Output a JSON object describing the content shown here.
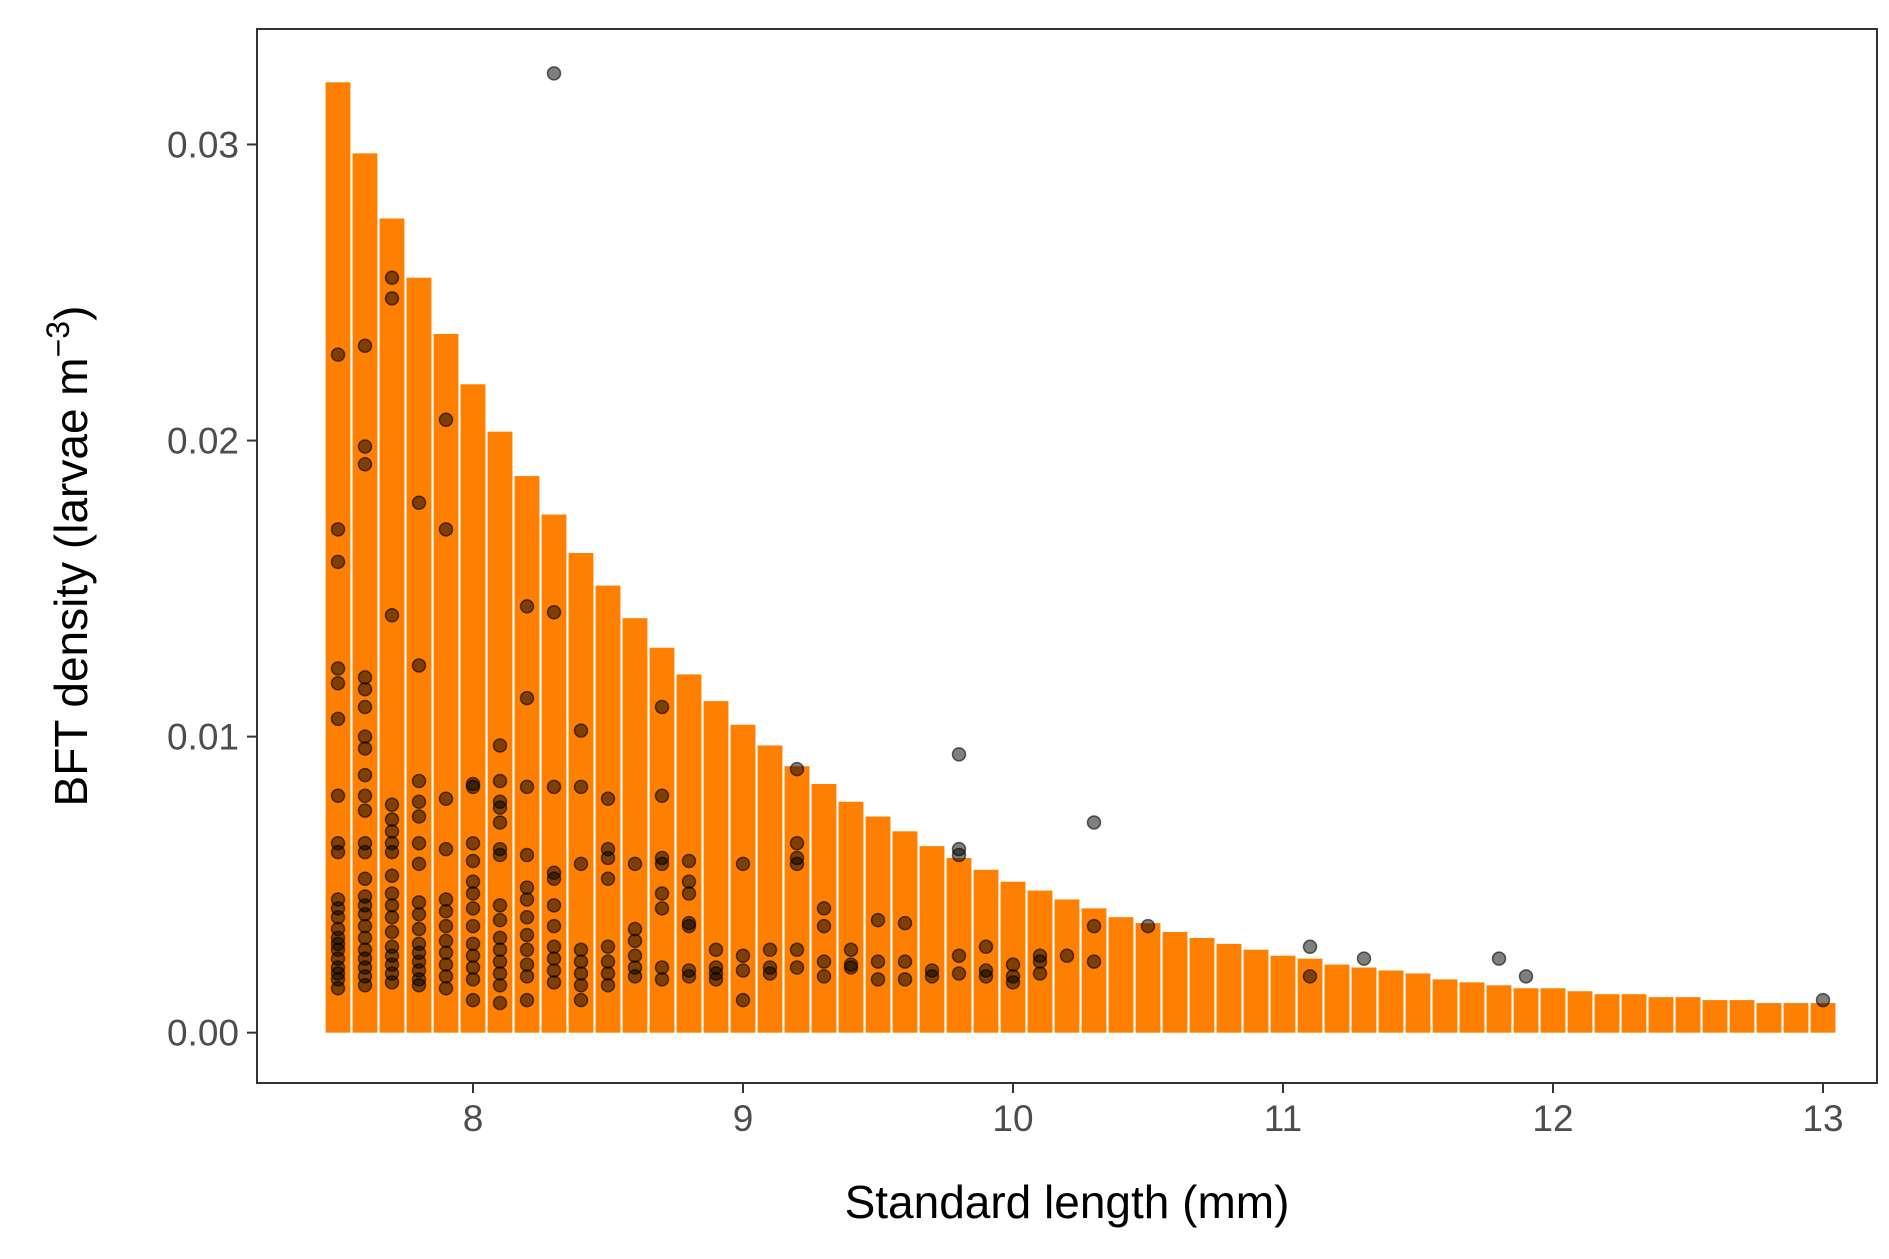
{
  "chart_data": {
    "type": "bar",
    "xlabel": "Standard length (mm)",
    "ylabel_main": "BFT density (larvae m",
    "ylabel_sup": "−3",
    "ylabel_close": ")",
    "xlim": [
      7.2,
      13.2
    ],
    "ylim": [
      -0.0017,
      0.0339
    ],
    "x_ticks": [
      8,
      9,
      10,
      11,
      12,
      13
    ],
    "x_tick_labels": [
      "8",
      "9",
      "10",
      "11",
      "12",
      "13"
    ],
    "y_ticks": [
      0,
      0.01,
      0.02,
      0.03
    ],
    "y_tick_labels": [
      "0.00",
      "0.01",
      "0.02",
      "0.03"
    ],
    "grid": false,
    "legend": "none",
    "colors": {
      "bar": "#ff7f00",
      "point_fill": "#000000",
      "point_opacity": 0.5,
      "axis": "#333333"
    },
    "series": [
      {
        "kind": "bar",
        "bar_width": 0.092,
        "x": [
          7.5,
          7.6,
          7.7,
          7.8,
          7.9,
          8.0,
          8.1,
          8.2,
          8.3,
          8.4,
          8.5,
          8.6,
          8.7,
          8.8,
          8.9,
          9.0,
          9.1,
          9.2,
          9.3,
          9.4,
          9.5,
          9.6,
          9.7,
          9.8,
          9.9,
          10.0,
          10.1,
          10.2,
          10.3,
          10.4,
          10.5,
          10.6,
          10.7,
          10.8,
          10.9,
          11.0,
          11.1,
          11.2,
          11.3,
          11.4,
          11.5,
          11.6,
          11.7,
          11.8,
          11.9,
          12.0,
          12.1,
          12.2,
          12.3,
          12.4,
          12.5,
          12.6,
          12.7,
          12.8,
          12.9,
          13.0
        ],
        "values": [
          0.0321,
          0.0297,
          0.0275,
          0.0255,
          0.0236,
          0.0219,
          0.0203,
          0.0188,
          0.0175,
          0.0162,
          0.0151,
          0.014,
          0.013,
          0.0121,
          0.0112,
          0.0104,
          0.0097,
          0.009,
          0.0084,
          0.0078,
          0.0073,
          0.0068,
          0.0063,
          0.0059,
          0.0055,
          0.0051,
          0.0048,
          0.0045,
          0.0042,
          0.0039,
          0.0037,
          0.0034,
          0.0032,
          0.003,
          0.0028,
          0.0026,
          0.0025,
          0.0023,
          0.0022,
          0.0021,
          0.002,
          0.0018,
          0.0017,
          0.0016,
          0.0015,
          0.0015,
          0.0014,
          0.0013,
          0.0013,
          0.0012,
          0.0012,
          0.0011,
          0.0011,
          0.001,
          0.001,
          0.001
        ]
      },
      {
        "kind": "scatter",
        "points": [
          [
            7.5,
            0.0229
          ],
          [
            7.5,
            0.017
          ],
          [
            7.5,
            0.0159
          ],
          [
            7.5,
            0.0123
          ],
          [
            7.5,
            0.0118
          ],
          [
            7.5,
            0.0106
          ],
          [
            7.5,
            0.008
          ],
          [
            7.5,
            0.0064
          ],
          [
            7.5,
            0.0061
          ],
          [
            7.5,
            0.0045
          ],
          [
            7.5,
            0.0042
          ],
          [
            7.5,
            0.0039
          ],
          [
            7.5,
            0.0035
          ],
          [
            7.5,
            0.0032
          ],
          [
            7.5,
            0.003
          ],
          [
            7.5,
            0.0028
          ],
          [
            7.5,
            0.0025
          ],
          [
            7.5,
            0.0022
          ],
          [
            7.5,
            0.002
          ],
          [
            7.5,
            0.0018
          ],
          [
            7.5,
            0.0015
          ],
          [
            7.6,
            0.0232
          ],
          [
            7.6,
            0.0198
          ],
          [
            7.6,
            0.0192
          ],
          [
            7.6,
            0.012
          ],
          [
            7.6,
            0.0116
          ],
          [
            7.6,
            0.011
          ],
          [
            7.6,
            0.01
          ],
          [
            7.6,
            0.0096
          ],
          [
            7.6,
            0.0087
          ],
          [
            7.6,
            0.008
          ],
          [
            7.6,
            0.0075
          ],
          [
            7.6,
            0.0064
          ],
          [
            7.6,
            0.0061
          ],
          [
            7.6,
            0.0052
          ],
          [
            7.6,
            0.0046
          ],
          [
            7.6,
            0.0043
          ],
          [
            7.6,
            0.004
          ],
          [
            7.6,
            0.0036
          ],
          [
            7.6,
            0.0032
          ],
          [
            7.6,
            0.0028
          ],
          [
            7.6,
            0.0025
          ],
          [
            7.6,
            0.0022
          ],
          [
            7.6,
            0.0019
          ],
          [
            7.6,
            0.0016
          ],
          [
            7.7,
            0.0255
          ],
          [
            7.7,
            0.0248
          ],
          [
            7.7,
            0.0141
          ],
          [
            7.7,
            0.0077
          ],
          [
            7.7,
            0.0072
          ],
          [
            7.7,
            0.0068
          ],
          [
            7.7,
            0.0064
          ],
          [
            7.7,
            0.0061
          ],
          [
            7.7,
            0.0053
          ],
          [
            7.7,
            0.0047
          ],
          [
            7.7,
            0.0043
          ],
          [
            7.7,
            0.0039
          ],
          [
            7.7,
            0.0034
          ],
          [
            7.7,
            0.0029
          ],
          [
            7.7,
            0.0026
          ],
          [
            7.7,
            0.0023
          ],
          [
            7.7,
            0.002
          ],
          [
            7.7,
            0.0017
          ],
          [
            7.8,
            0.0179
          ],
          [
            7.8,
            0.0124
          ],
          [
            7.8,
            0.0085
          ],
          [
            7.8,
            0.0078
          ],
          [
            7.8,
            0.0073
          ],
          [
            7.8,
            0.0064
          ],
          [
            7.8,
            0.0057
          ],
          [
            7.8,
            0.0044
          ],
          [
            7.8,
            0.004
          ],
          [
            7.8,
            0.0035
          ],
          [
            7.8,
            0.003
          ],
          [
            7.8,
            0.0027
          ],
          [
            7.8,
            0.0024
          ],
          [
            7.8,
            0.0021
          ],
          [
            7.8,
            0.0018
          ],
          [
            7.8,
            0.0016
          ],
          [
            7.9,
            0.0207
          ],
          [
            7.9,
            0.017
          ],
          [
            7.9,
            0.0079
          ],
          [
            7.9,
            0.0062
          ],
          [
            7.9,
            0.0045
          ],
          [
            7.9,
            0.0041
          ],
          [
            7.9,
            0.0036
          ],
          [
            7.9,
            0.0031
          ],
          [
            7.9,
            0.0027
          ],
          [
            7.9,
            0.0023
          ],
          [
            7.9,
            0.0019
          ],
          [
            7.9,
            0.0015
          ],
          [
            8.0,
            0.0084
          ],
          [
            8.0,
            0.0083
          ],
          [
            8.0,
            0.0064
          ],
          [
            8.0,
            0.0058
          ],
          [
            8.0,
            0.0051
          ],
          [
            8.0,
            0.0047
          ],
          [
            8.0,
            0.0042
          ],
          [
            8.0,
            0.0036
          ],
          [
            8.0,
            0.003
          ],
          [
            8.0,
            0.0026
          ],
          [
            8.0,
            0.0022
          ],
          [
            8.0,
            0.0018
          ],
          [
            8.0,
            0.0011
          ],
          [
            8.1,
            0.0097
          ],
          [
            8.1,
            0.0085
          ],
          [
            8.1,
            0.0078
          ],
          [
            8.1,
            0.0076
          ],
          [
            8.1,
            0.0071
          ],
          [
            8.1,
            0.0062
          ],
          [
            8.1,
            0.006
          ],
          [
            8.1,
            0.0043
          ],
          [
            8.1,
            0.0038
          ],
          [
            8.1,
            0.0032
          ],
          [
            8.1,
            0.0028
          ],
          [
            8.1,
            0.0024
          ],
          [
            8.1,
            0.002
          ],
          [
            8.1,
            0.0016
          ],
          [
            8.1,
            0.001
          ],
          [
            8.2,
            0.0144
          ],
          [
            8.2,
            0.0113
          ],
          [
            8.2,
            0.0083
          ],
          [
            8.2,
            0.006
          ],
          [
            8.2,
            0.0049
          ],
          [
            8.2,
            0.0045
          ],
          [
            8.2,
            0.0039
          ],
          [
            8.2,
            0.0033
          ],
          [
            8.2,
            0.0028
          ],
          [
            8.2,
            0.0023
          ],
          [
            8.2,
            0.0019
          ],
          [
            8.2,
            0.0011
          ],
          [
            8.3,
            0.0324
          ],
          [
            8.3,
            0.0142
          ],
          [
            8.3,
            0.0083
          ],
          [
            8.3,
            0.0054
          ],
          [
            8.3,
            0.0052
          ],
          [
            8.3,
            0.0043
          ],
          [
            8.3,
            0.0036
          ],
          [
            8.3,
            0.0029
          ],
          [
            8.3,
            0.0025
          ],
          [
            8.3,
            0.0021
          ],
          [
            8.3,
            0.0017
          ],
          [
            8.4,
            0.0102
          ],
          [
            8.4,
            0.0083
          ],
          [
            8.4,
            0.0057
          ],
          [
            8.4,
            0.0028
          ],
          [
            8.4,
            0.0024
          ],
          [
            8.4,
            0.002
          ],
          [
            8.4,
            0.0016
          ],
          [
            8.4,
            0.0011
          ],
          [
            8.5,
            0.0079
          ],
          [
            8.5,
            0.0062
          ],
          [
            8.5,
            0.0059
          ],
          [
            8.5,
            0.0052
          ],
          [
            8.5,
            0.0029
          ],
          [
            8.5,
            0.0024
          ],
          [
            8.5,
            0.002
          ],
          [
            8.5,
            0.0016
          ],
          [
            8.6,
            0.0057
          ],
          [
            8.6,
            0.0035
          ],
          [
            8.6,
            0.0031
          ],
          [
            8.6,
            0.0026
          ],
          [
            8.6,
            0.0022
          ],
          [
            8.6,
            0.0019
          ],
          [
            8.7,
            0.011
          ],
          [
            8.7,
            0.008
          ],
          [
            8.7,
            0.0059
          ],
          [
            8.7,
            0.0057
          ],
          [
            8.7,
            0.0047
          ],
          [
            8.7,
            0.0042
          ],
          [
            8.7,
            0.0022
          ],
          [
            8.7,
            0.0018
          ],
          [
            8.8,
            0.0058
          ],
          [
            8.8,
            0.0051
          ],
          [
            8.8,
            0.0047
          ],
          [
            8.8,
            0.0037
          ],
          [
            8.8,
            0.0036
          ],
          [
            8.8,
            0.0021
          ],
          [
            8.8,
            0.0019
          ],
          [
            8.9,
            0.0028
          ],
          [
            8.9,
            0.0022
          ],
          [
            8.9,
            0.002
          ],
          [
            8.9,
            0.0018
          ],
          [
            9.0,
            0.0057
          ],
          [
            9.0,
            0.0026
          ],
          [
            9.0,
            0.0021
          ],
          [
            9.0,
            0.0011
          ],
          [
            9.1,
            0.0028
          ],
          [
            9.1,
            0.0022
          ],
          [
            9.1,
            0.002
          ],
          [
            9.2,
            0.0089
          ],
          [
            9.2,
            0.0064
          ],
          [
            9.2,
            0.0059
          ],
          [
            9.2,
            0.0057
          ],
          [
            9.2,
            0.0028
          ],
          [
            9.2,
            0.0022
          ],
          [
            9.3,
            0.0042
          ],
          [
            9.3,
            0.0036
          ],
          [
            9.3,
            0.0024
          ],
          [
            9.3,
            0.0019
          ],
          [
            9.4,
            0.0028
          ],
          [
            9.4,
            0.0023
          ],
          [
            9.4,
            0.0022
          ],
          [
            9.5,
            0.0038
          ],
          [
            9.5,
            0.0024
          ],
          [
            9.5,
            0.0018
          ],
          [
            9.6,
            0.0037
          ],
          [
            9.6,
            0.0024
          ],
          [
            9.6,
            0.0018
          ],
          [
            9.7,
            0.0021
          ],
          [
            9.7,
            0.0019
          ],
          [
            9.8,
            0.0094
          ],
          [
            9.8,
            0.0062
          ],
          [
            9.8,
            0.006
          ],
          [
            9.8,
            0.0026
          ],
          [
            9.8,
            0.002
          ],
          [
            9.9,
            0.0029
          ],
          [
            9.9,
            0.0021
          ],
          [
            9.9,
            0.0019
          ],
          [
            10.0,
            0.0023
          ],
          [
            10.0,
            0.0019
          ],
          [
            10.0,
            0.0017
          ],
          [
            10.1,
            0.0026
          ],
          [
            10.1,
            0.0024
          ],
          [
            10.1,
            0.002
          ],
          [
            10.2,
            0.0026
          ],
          [
            10.3,
            0.0071
          ],
          [
            10.3,
            0.0036
          ],
          [
            10.3,
            0.0024
          ],
          [
            10.5,
            0.0036
          ],
          [
            11.1,
            0.0029
          ],
          [
            11.1,
            0.0019
          ],
          [
            11.3,
            0.0025
          ],
          [
            11.8,
            0.0025
          ],
          [
            11.9,
            0.0019
          ],
          [
            13.0,
            0.0011
          ]
        ]
      }
    ]
  }
}
